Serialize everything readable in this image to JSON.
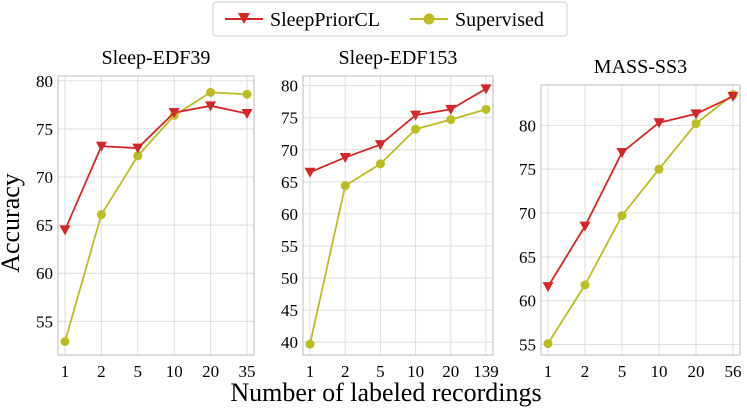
{
  "colors": {
    "sleepprior": "#d62728",
    "supervised": "#bcbd22"
  },
  "legend": {
    "items": [
      {
        "label": "SleepPriorCL",
        "color": "#d62728",
        "marker": "triangle-down"
      },
      {
        "label": "Supervised",
        "color": "#bcbd22",
        "marker": "circle"
      }
    ]
  },
  "xlabel": "Number of labeled recordings",
  "ylabel": "Accuracy",
  "chart_data": [
    {
      "type": "line",
      "title": "Sleep-EDF39",
      "categories": [
        "1",
        "2",
        "5",
        "10",
        "20",
        "35"
      ],
      "ylim": [
        51.5,
        80.5
      ],
      "yticks": [
        55,
        60,
        65,
        70,
        75,
        80
      ],
      "grid": true,
      "series": [
        {
          "name": "SleepPriorCL",
          "values": [
            64.5,
            73.2,
            73.0,
            76.7,
            77.4,
            76.6
          ]
        },
        {
          "name": "Supervised",
          "values": [
            52.9,
            66.1,
            72.2,
            76.4,
            78.8,
            78.6
          ]
        }
      ]
    },
    {
      "type": "line",
      "title": "Sleep-EDF153",
      "categories": [
        "1",
        "2",
        "5",
        "10",
        "20",
        "139"
      ],
      "ylim": [
        38,
        81.5
      ],
      "yticks": [
        40,
        45,
        50,
        55,
        60,
        65,
        70,
        75,
        80
      ],
      "grid": true,
      "series": [
        {
          "name": "SleepPriorCL",
          "values": [
            66.5,
            68.8,
            70.8,
            75.4,
            76.3,
            79.5
          ]
        },
        {
          "name": "Supervised",
          "values": [
            39.7,
            64.4,
            67.8,
            73.2,
            74.7,
            76.3
          ]
        }
      ]
    },
    {
      "type": "line",
      "title": "MASS-SS3",
      "categories": [
        "1",
        "2",
        "5",
        "10",
        "20",
        "56"
      ],
      "ylim": [
        53.8,
        84.6
      ],
      "yticks": [
        55,
        60,
        65,
        70,
        75,
        80
      ],
      "grid": true,
      "series": [
        {
          "name": "SleepPriorCL",
          "values": [
            61.6,
            68.5,
            76.9,
            80.3,
            81.3,
            83.3
          ]
        },
        {
          "name": "Supervised",
          "values": [
            55.1,
            61.8,
            69.7,
            75.0,
            80.2,
            83.5
          ]
        }
      ]
    }
  ]
}
